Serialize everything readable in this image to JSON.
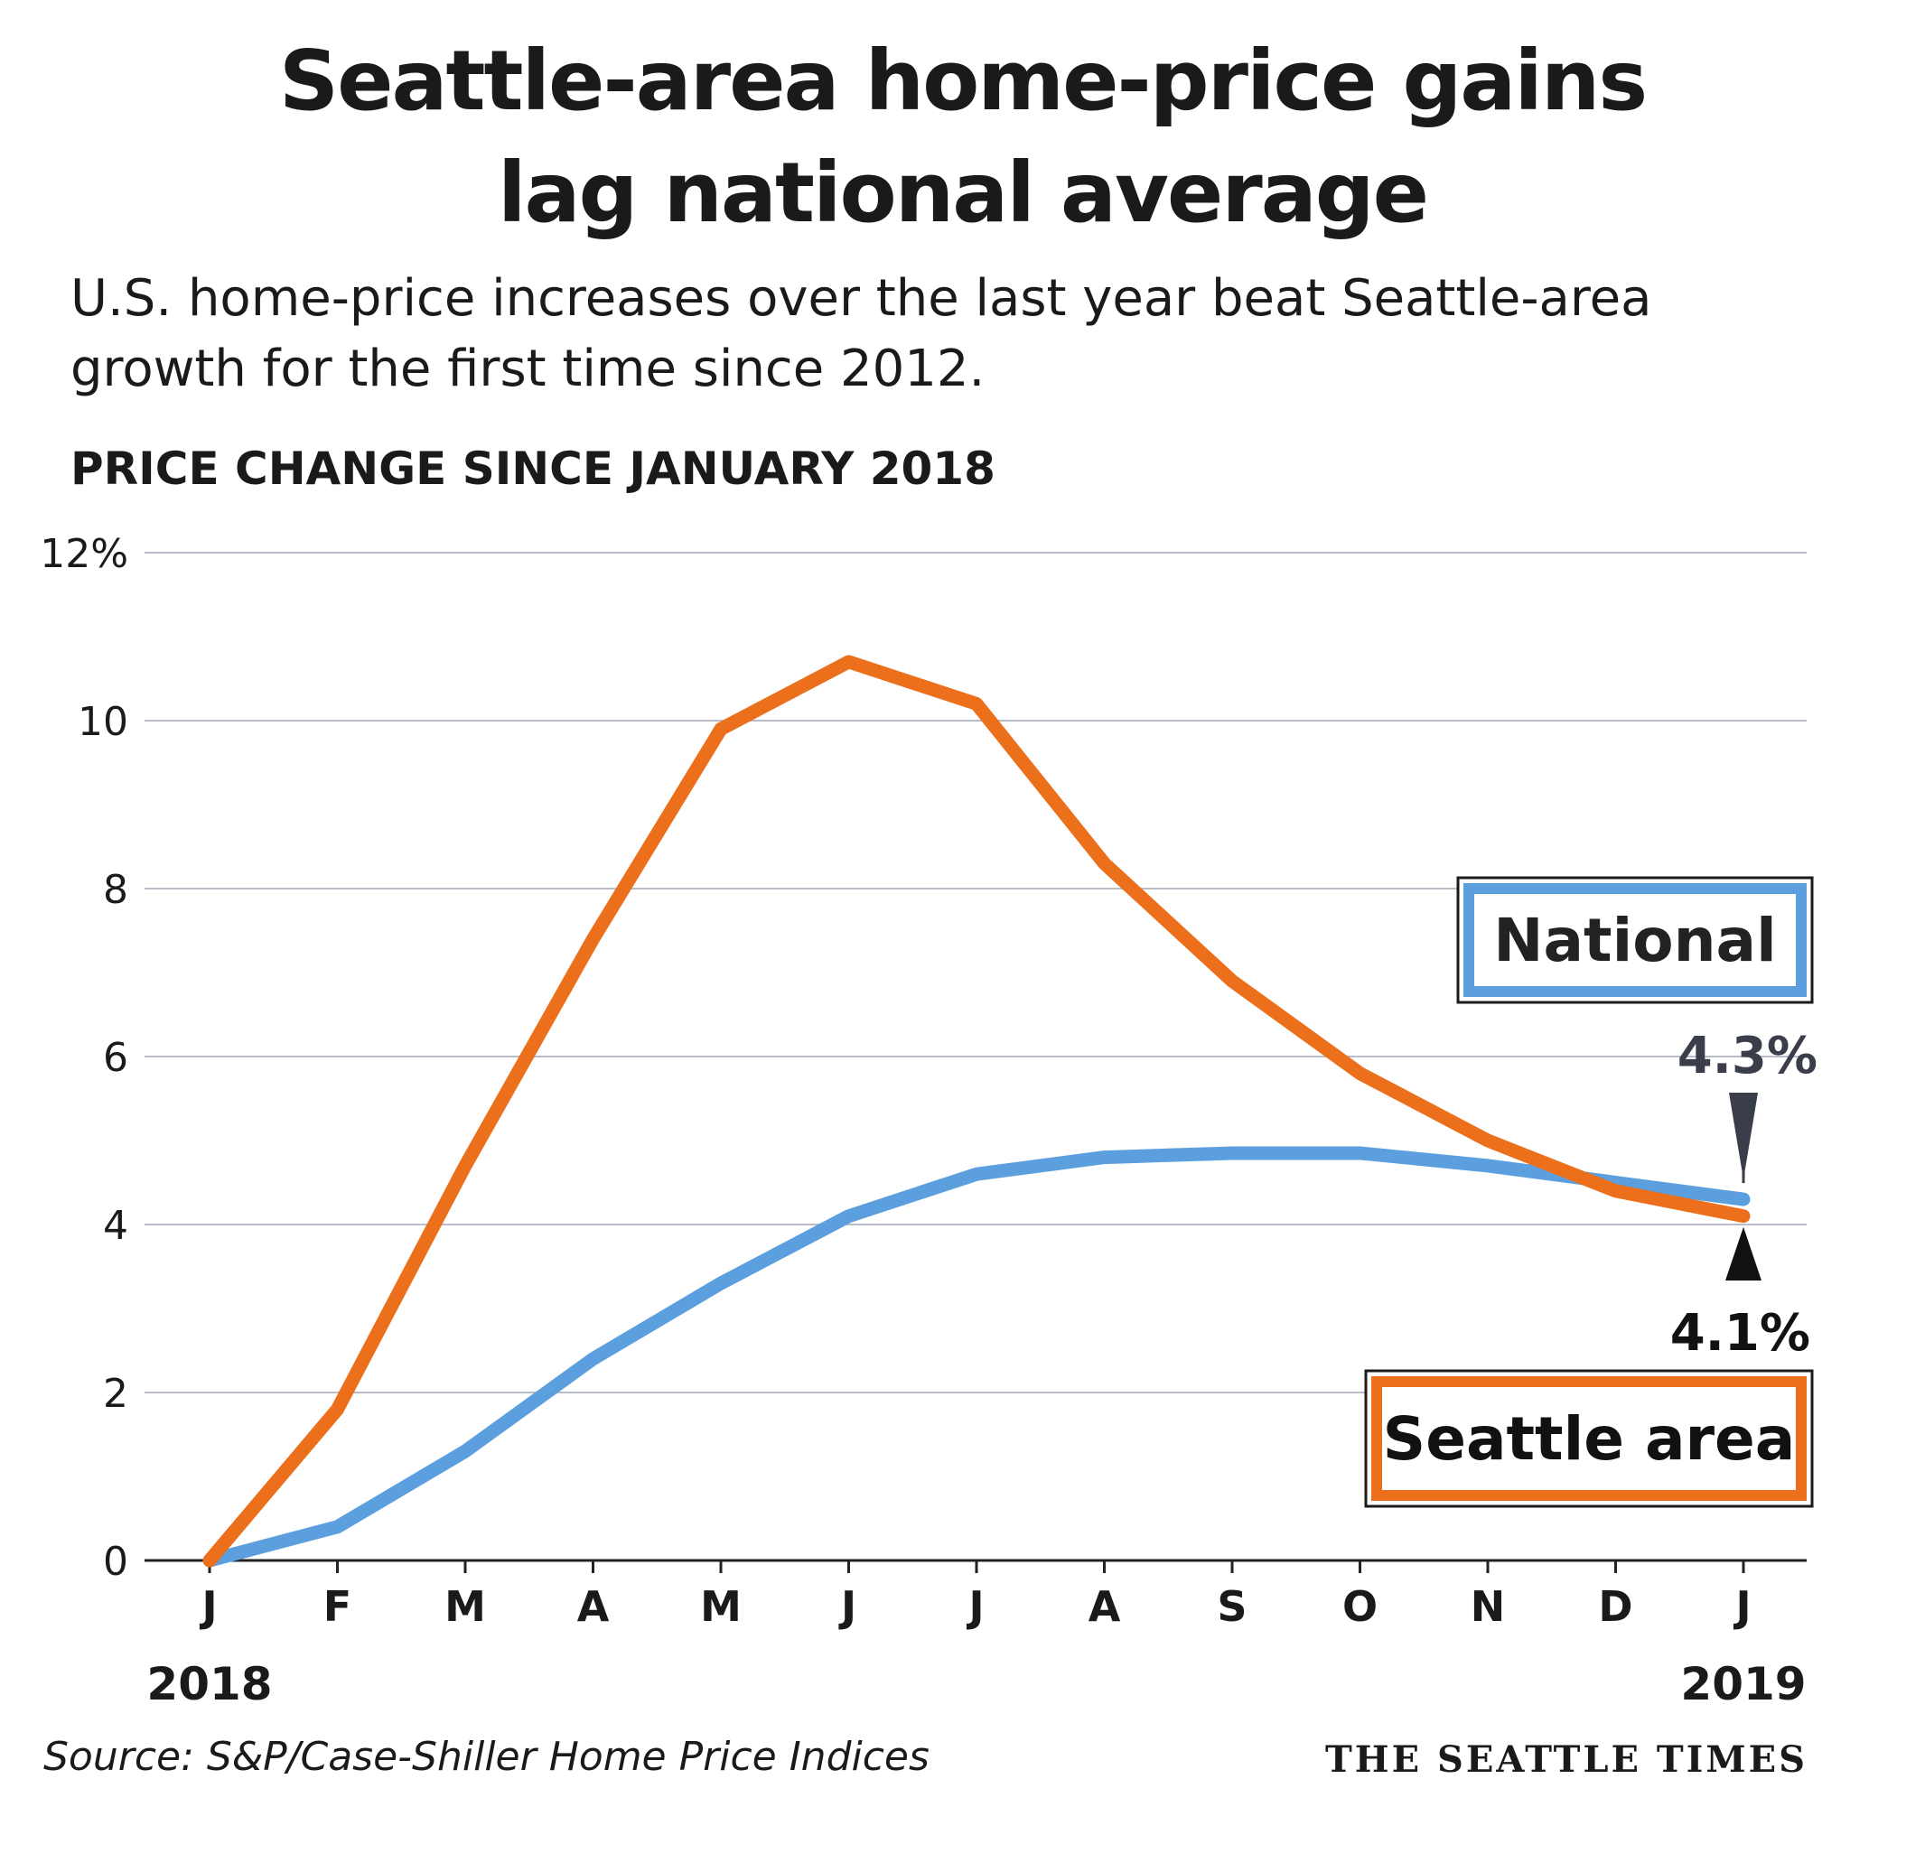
{
  "title_line1": "Seattle-area home-price gains",
  "title_line2": "lag national average",
  "subtitle_line1": "U.S. home-price increases over the last year beat Seattle-area",
  "subtitle_line2": "growth for the first time since 2012.",
  "source": "Source: S&P/Case-Shiller Home Price Indices",
  "credit": "THE SEATTLE TIMES",
  "colors": {
    "seattle": "#ec6f1c",
    "national": "#5b9fde",
    "grid": "#b9bccb",
    "text": "#1a1a1a"
  },
  "chart_data": {
    "type": "line",
    "ylabel": "PRICE CHANGE SINCE JANUARY 2018",
    "ylim": [
      0,
      12
    ],
    "yticks": [
      0,
      2,
      4,
      6,
      8,
      10,
      12
    ],
    "ytick_labels": [
      "0",
      "2",
      "4",
      "6",
      "8",
      "10",
      "12%"
    ],
    "x": [
      "J",
      "F",
      "M",
      "A",
      "M",
      "J",
      "J",
      "A",
      "S",
      "O",
      "N",
      "D",
      "J"
    ],
    "year_labels": [
      {
        "index": 0,
        "label": "2018"
      },
      {
        "index": 12,
        "label": "2019"
      }
    ],
    "grid": true,
    "series": [
      {
        "name": "Seattle area",
        "color": "#ec6f1c",
        "values": [
          0,
          1.8,
          4.7,
          7.4,
          9.9,
          10.7,
          10.2,
          8.3,
          6.9,
          5.8,
          5.0,
          4.4,
          4.1
        ],
        "end_label": "4.1%"
      },
      {
        "name": "National",
        "color": "#5b9fde",
        "values": [
          0,
          0.4,
          1.3,
          2.4,
          3.3,
          4.1,
          4.6,
          4.8,
          4.85,
          4.85,
          4.7,
          4.5,
          4.3
        ],
        "end_label": "4.3%"
      }
    ]
  }
}
